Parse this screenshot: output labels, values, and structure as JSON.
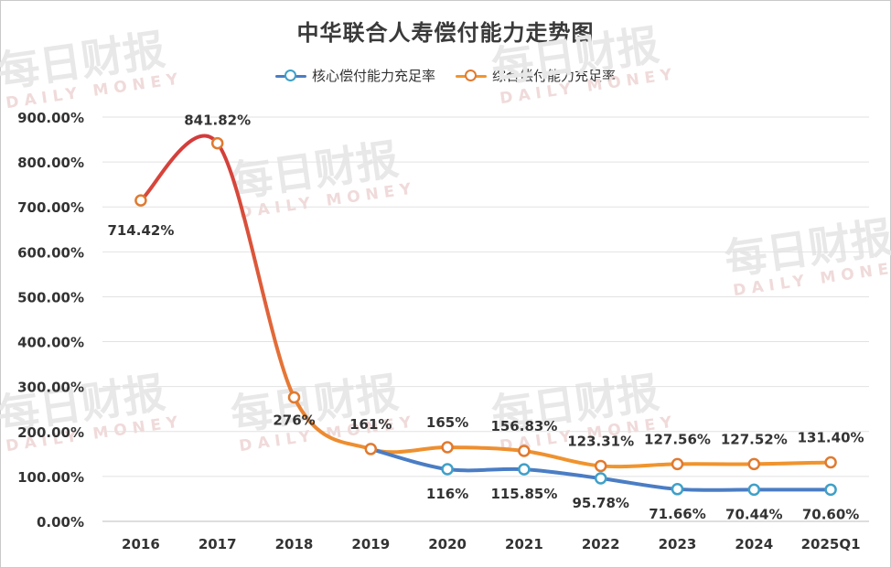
{
  "chart_data": {
    "type": "line",
    "title": "中华联合人寿偿付能力走势图",
    "categories": [
      "2016",
      "2017",
      "2018",
      "2019",
      "2020",
      "2021",
      "2022",
      "2023",
      "2024",
      "2025Q1"
    ],
    "series": [
      {
        "name": "核心偿付能力充足率",
        "color": "#4a7dc4",
        "marker_color": "#3fa0c8",
        "values": [
          null,
          null,
          null,
          161,
          116,
          115.85,
          95.78,
          71.66,
          70.44,
          70.6
        ],
        "labels": [
          "",
          "",
          "",
          "",
          "116%",
          "115.85%",
          "95.78%",
          "71.66%",
          "70.44%",
          "70.60%"
        ]
      },
      {
        "name": "综合偿付能力充足率",
        "color": "#f0952e",
        "marker_color": "#e07a30",
        "values": [
          714.42,
          841.82,
          276,
          161,
          165,
          156.83,
          123.31,
          127.56,
          127.52,
          131.4
        ],
        "labels": [
          "714.42%",
          "841.82%",
          "276%",
          "161%",
          "165%",
          "156.83%",
          "123.31%",
          "127.56%",
          "127.52%",
          "131.40%"
        ]
      }
    ],
    "ytick_labels": [
      "0.00%",
      "100.00%",
      "200.00%",
      "300.00%",
      "400.00%",
      "500.00%",
      "600.00%",
      "700.00%",
      "800.00%",
      "900.00%"
    ],
    "ylim": [
      0,
      900
    ],
    "grid": true,
    "legend_placement": "top-center"
  },
  "watermark": {
    "brand": "每日财报",
    "latin": "DAILY MONEY"
  }
}
